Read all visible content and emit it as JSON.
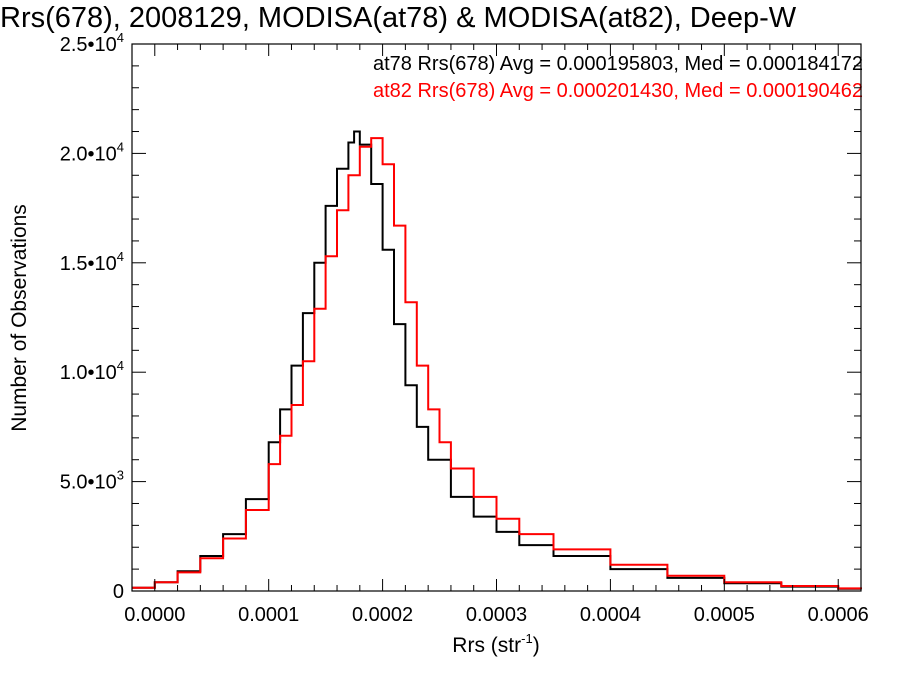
{
  "chart_data": {
    "type": "line",
    "title": "Rrs(678), 2008129, MODISA(at78) & MODISA(at82), Deep-W",
    "xlabel": "Rrs (str",
    "xlabel_sup": "-1",
    "xlabel_close": ")",
    "ylabel": "Number of Observations",
    "xlim": [
      -2e-05,
      0.00062
    ],
    "ylim": [
      0,
      25000
    ],
    "x_ticks": [
      {
        "value": 0.0,
        "label": "0.0000"
      },
      {
        "value": 0.0001,
        "label": "0.0001"
      },
      {
        "value": 0.0002,
        "label": "0.0002"
      },
      {
        "value": 0.0003,
        "label": "0.0003"
      },
      {
        "value": 0.0004,
        "label": "0.0004"
      },
      {
        "value": 0.0005,
        "label": "0.0005"
      },
      {
        "value": 0.0006,
        "label": "0.0006"
      }
    ],
    "y_ticks": [
      {
        "value": 0,
        "mant": "0",
        "exp": ""
      },
      {
        "value": 5000,
        "mant": "5.0•10",
        "exp": "3"
      },
      {
        "value": 10000,
        "mant": "1.0•10",
        "exp": "4"
      },
      {
        "value": 15000,
        "mant": "1.5•10",
        "exp": "4"
      },
      {
        "value": 20000,
        "mant": "2.0•10",
        "exp": "4"
      },
      {
        "value": 25000,
        "mant": "2.5•10",
        "exp": "4"
      }
    ],
    "annotations": [
      {
        "text": "at78 Rrs(678) Avg = 0.000195803, Med = 0.000184172",
        "color": "#000000"
      },
      {
        "text": "at82 Rrs(678) Avg = 0.000201430, Med = 0.000190462",
        "color": "#ff0000"
      }
    ],
    "series": [
      {
        "color": "#000000",
        "x": [
          -2e-05,
          0.0,
          2e-05,
          4e-05,
          6e-05,
          8e-05,
          0.0001,
          0.00011,
          0.00012,
          0.00013,
          0.00014,
          0.00015,
          0.00016,
          0.00017,
          0.000175,
          0.00018,
          0.00019,
          0.0002,
          0.00021,
          0.00022,
          0.00023,
          0.00024,
          0.00026,
          0.00028,
          0.0003,
          0.00032,
          0.00035,
          0.0004,
          0.00045,
          0.0005,
          0.00055,
          0.0006,
          0.00062
        ],
        "y": [
          150,
          400,
          900,
          1600,
          2600,
          4200,
          6800,
          8300,
          10300,
          12700,
          15000,
          17600,
          19300,
          20500,
          21000,
          20400,
          18600,
          15600,
          12200,
          9400,
          7500,
          6000,
          4300,
          3400,
          2700,
          2100,
          1600,
          1000,
          600,
          350,
          200,
          100,
          80
        ]
      },
      {
        "color": "#ff0000",
        "x": [
          -2e-05,
          0.0,
          2e-05,
          4e-05,
          6e-05,
          8e-05,
          0.0001,
          0.00011,
          0.00012,
          0.00013,
          0.00014,
          0.00015,
          0.00016,
          0.00017,
          0.00018,
          0.00019,
          0.0002,
          0.00021,
          0.00022,
          0.00023,
          0.00024,
          0.00025,
          0.00026,
          0.00028,
          0.0003,
          0.00032,
          0.00035,
          0.0004,
          0.00045,
          0.0005,
          0.00055,
          0.0006,
          0.00062
        ],
        "y": [
          150,
          400,
          850,
          1500,
          2400,
          3700,
          5800,
          7100,
          8500,
          10500,
          12900,
          15300,
          17400,
          19000,
          20300,
          20700,
          19500,
          16700,
          13200,
          10300,
          8300,
          6800,
          5600,
          4300,
          3300,
          2600,
          1900,
          1200,
          700,
          400,
          230,
          120,
          90
        ]
      }
    ]
  }
}
